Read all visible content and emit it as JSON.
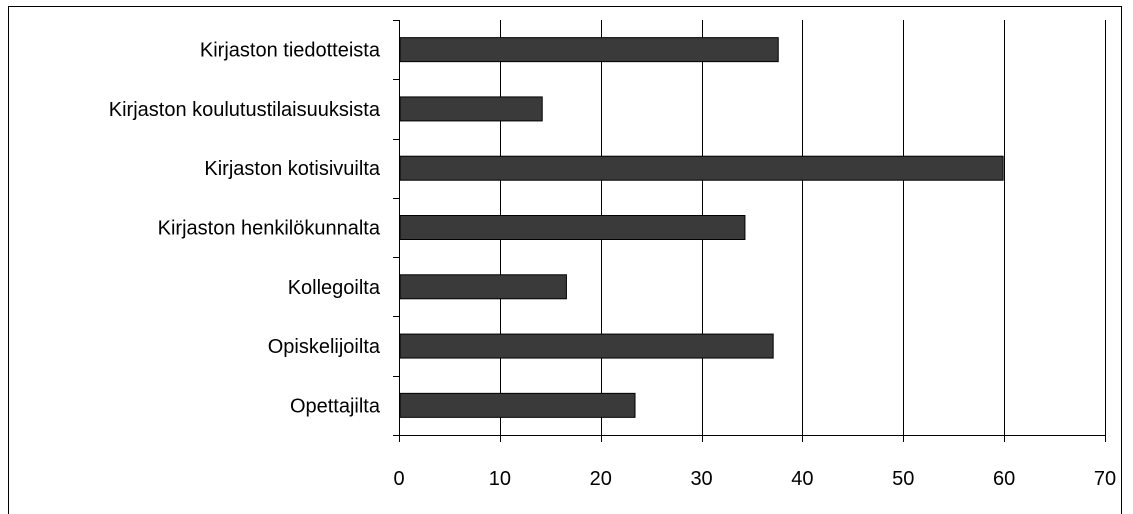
{
  "chart_data": {
    "type": "bar",
    "orientation": "horizontal",
    "categories": [
      "Kirjaston tiedotteista",
      "Kirjaston koulutustilaisuuksista",
      "Kirjaston kotisivuilta",
      "Kirjaston henkilökunnalta",
      "Kollegoilta",
      "Opiskelijoilta",
      "Opettajilta"
    ],
    "values": [
      37.6,
      14.2,
      59.9,
      34.3,
      16.6,
      37.1,
      23.4
    ],
    "xlim": [
      0,
      70
    ],
    "xticks": [
      "0",
      "10",
      "20",
      "30",
      "40",
      "50",
      "60",
      "70"
    ],
    "grid": "vertical",
    "bar_color": "#3a3a3a",
    "title": "",
    "xlabel": "",
    "ylabel": ""
  }
}
